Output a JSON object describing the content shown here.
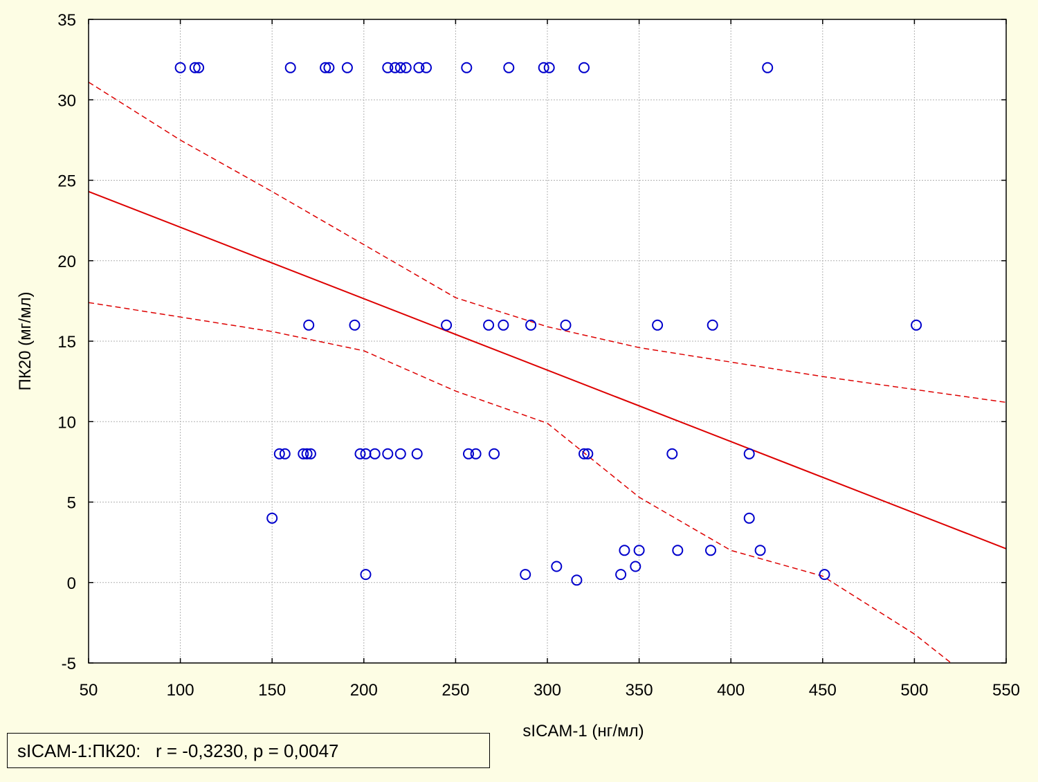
{
  "chart_data": {
    "type": "scatter",
    "xlabel": "sICAM-1 (нг/мл)",
    "ylabel": "ПК20 (мг/мл)",
    "xlim": [
      50,
      550
    ],
    "ylim": [
      -5,
      35
    ],
    "x_ticks": [
      50,
      100,
      150,
      200,
      250,
      300,
      350,
      400,
      450,
      500,
      550
    ],
    "y_ticks": [
      -5,
      0,
      5,
      10,
      15,
      20,
      25,
      30,
      35
    ],
    "grid": true,
    "colors": {
      "points": "#0000cc",
      "fit": "#dd0000",
      "background": "#fdfde4"
    },
    "points": [
      [
        100,
        32
      ],
      [
        108,
        32
      ],
      [
        110,
        32
      ],
      [
        160,
        32
      ],
      [
        179,
        32
      ],
      [
        181,
        32
      ],
      [
        191,
        32
      ],
      [
        213,
        32
      ],
      [
        217,
        32
      ],
      [
        220,
        32
      ],
      [
        223,
        32
      ],
      [
        230,
        32
      ],
      [
        234,
        32
      ],
      [
        256,
        32
      ],
      [
        279,
        32
      ],
      [
        298,
        32
      ],
      [
        301,
        32
      ],
      [
        320,
        32
      ],
      [
        420,
        32
      ],
      [
        170,
        16
      ],
      [
        195,
        16
      ],
      [
        245,
        16
      ],
      [
        268,
        16
      ],
      [
        276,
        16
      ],
      [
        291,
        16
      ],
      [
        310,
        16
      ],
      [
        360,
        16
      ],
      [
        390,
        16
      ],
      [
        501,
        16
      ],
      [
        154,
        8
      ],
      [
        157,
        8
      ],
      [
        167,
        8
      ],
      [
        169,
        8
      ],
      [
        171,
        8
      ],
      [
        198,
        8
      ],
      [
        201,
        8
      ],
      [
        206,
        8
      ],
      [
        213,
        8
      ],
      [
        220,
        8
      ],
      [
        229,
        8
      ],
      [
        257,
        8
      ],
      [
        261,
        8
      ],
      [
        271,
        8
      ],
      [
        320,
        8
      ],
      [
        322,
        8
      ],
      [
        368,
        8
      ],
      [
        410,
        8
      ],
      [
        150,
        4
      ],
      [
        410,
        4
      ],
      [
        342,
        2
      ],
      [
        350,
        2
      ],
      [
        371,
        2
      ],
      [
        389,
        2
      ],
      [
        416,
        2
      ],
      [
        201,
        0.5
      ],
      [
        288,
        0.5
      ],
      [
        305,
        1
      ],
      [
        316,
        0.15
      ],
      [
        340,
        0.5
      ],
      [
        348,
        1
      ],
      [
        451,
        0.5
      ]
    ],
    "fit_line": [
      [
        50,
        24.3
      ],
      [
        550,
        2.1
      ]
    ],
    "confidence_upper": [
      [
        50,
        31.1
      ],
      [
        100,
        27.5
      ],
      [
        150,
        24.3
      ],
      [
        200,
        21.0
      ],
      [
        250,
        17.7
      ],
      [
        300,
        15.9
      ],
      [
        350,
        14.6
      ],
      [
        400,
        13.7
      ],
      [
        450,
        12.8
      ],
      [
        500,
        12.0
      ],
      [
        550,
        11.2
      ]
    ],
    "confidence_lower": [
      [
        50,
        17.4
      ],
      [
        100,
        16.5
      ],
      [
        150,
        15.6
      ],
      [
        200,
        14.4
      ],
      [
        250,
        11.9
      ],
      [
        300,
        9.9
      ],
      [
        350,
        5.3
      ],
      [
        400,
        2.0
      ],
      [
        450,
        0.4
      ],
      [
        500,
        -3.2
      ],
      [
        520,
        -5.0
      ]
    ]
  },
  "stats": {
    "text": "sICAM-1:ПК20:   r = -0,3230, p = 0,0047"
  }
}
